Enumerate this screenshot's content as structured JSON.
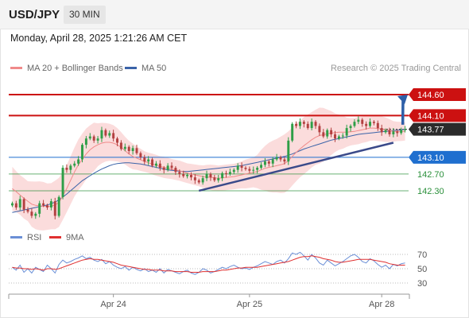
{
  "header": {
    "symbol": "USD/JPY",
    "interval": "30 MIN",
    "datetime": "Monday, April 28, 2025 1:21:26 AM CET"
  },
  "legend": {
    "ma20_label": "MA 20 + Bollinger Bands",
    "ma50_label": "MA 50",
    "credit": "Research © 2025 Trading Central"
  },
  "rsi_legend": {
    "rsi_label": "RSI",
    "ma_label": "9MA"
  },
  "colors": {
    "up": "#2e9e47",
    "down": "#b34040",
    "ma20": "#f08a8a",
    "ma50": "#3b63a8",
    "band": "#fbdcdc",
    "resistance": "#cc1111",
    "support": "#1f6fcf",
    "target": "#2a8f3a",
    "trend": "#3a4a8a",
    "arrow": "#2d5fa8",
    "rsi": "#6b8fd6",
    "rsi_ma": "#e03030",
    "current": "#2b2b2b"
  },
  "chart_data": {
    "type": "candlestick",
    "y_range": [
      141.5,
      145.0
    ],
    "x_labels": [
      "Apr 24",
      "Apr 25",
      "Apr 28"
    ],
    "current_price": 143.77,
    "levels": [
      {
        "value": 144.6,
        "label": "144.60",
        "kind": "resistance"
      },
      {
        "value": 144.1,
        "label": "144.10",
        "kind": "resistance"
      },
      {
        "value": 143.77,
        "label": "143.77",
        "kind": "current"
      },
      {
        "value": 143.1,
        "label": "143.10",
        "kind": "pivot"
      },
      {
        "value": 142.7,
        "label": "142.70",
        "kind": "support"
      },
      {
        "value": 142.3,
        "label": "142.30",
        "kind": "support"
      }
    ],
    "closes": [
      142.0,
      141.9,
      142.1,
      141.85,
      141.8,
      141.7,
      141.75,
      142.0,
      141.95,
      141.9,
      142.05,
      141.7,
      142.15,
      142.85,
      142.8,
      142.9,
      142.95,
      143.05,
      143.4,
      143.55,
      143.6,
      143.5,
      143.55,
      143.75,
      143.62,
      143.68,
      143.55,
      143.45,
      143.3,
      143.35,
      143.25,
      143.32,
      143.2,
      143.1,
      143.0,
      143.05,
      142.9,
      142.95,
      142.85,
      142.8,
      142.9,
      142.85,
      142.75,
      142.7,
      142.65,
      142.68,
      142.62,
      142.55,
      142.5,
      142.6,
      142.7,
      142.62,
      142.55,
      142.6,
      142.72,
      142.7,
      142.75,
      142.8,
      142.9,
      142.85,
      142.82,
      142.78,
      142.8,
      142.85,
      142.92,
      143.0,
      142.95,
      143.05,
      143.1,
      143.05,
      143.0,
      143.5,
      143.9,
      143.85,
      143.95,
      143.9,
      143.8,
      143.95,
      143.85,
      143.7,
      143.6,
      143.75,
      143.65,
      143.55,
      143.6,
      143.62,
      143.8,
      143.85,
      143.95,
      144.0,
      143.9,
      143.85,
      143.95,
      143.92,
      143.8,
      143.7,
      143.75,
      143.65,
      143.72,
      143.68,
      143.75,
      143.77
    ],
    "ma20": [
      142.35,
      142.28,
      142.2,
      142.12,
      142.05,
      141.98,
      141.95,
      141.94,
      141.93,
      141.92,
      141.93,
      141.96,
      142.02,
      142.18,
      142.35,
      142.55,
      142.75,
      142.92,
      143.05,
      143.18,
      143.28,
      143.35,
      143.4,
      143.44,
      143.46,
      143.46,
      143.44,
      143.4,
      143.34,
      143.26,
      143.18,
      143.12,
      143.08,
      143.04,
      143.0,
      142.97,
      142.94,
      142.91,
      142.88,
      142.86,
      142.84,
      142.82,
      142.8,
      142.78,
      142.75,
      142.72,
      142.7,
      142.68,
      142.66,
      142.64,
      142.63,
      142.62,
      142.61,
      142.6,
      142.61,
      142.62,
      142.63,
      142.64,
      142.66,
      142.68,
      142.7,
      142.72,
      142.74,
      142.76,
      142.8,
      142.84,
      142.86,
      142.88,
      142.9,
      142.92,
      142.95,
      143.02,
      143.12,
      143.22,
      143.3,
      143.38,
      143.45,
      143.52,
      143.58,
      143.62,
      143.64,
      143.66,
      143.68,
      143.69,
      143.7,
      143.7,
      143.7,
      143.71,
      143.72,
      143.74,
      143.76,
      143.78,
      143.8,
      143.8,
      143.79,
      143.78,
      143.76,
      143.74,
      143.72,
      143.72,
      143.72,
      143.72
    ],
    "ma50": [
      141.78,
      141.8,
      141.82,
      141.84,
      141.86,
      141.88,
      141.9,
      141.92,
      141.94,
      141.96,
      141.99,
      142.03,
      142.08,
      142.15,
      142.22,
      142.3,
      142.38,
      142.46,
      142.54,
      142.6,
      142.66,
      142.72,
      142.77,
      142.82,
      142.86,
      142.9,
      142.93,
      142.95,
      142.96,
      142.97,
      142.97,
      142.96,
      142.95,
      142.94,
      142.92,
      142.9,
      142.88,
      142.86,
      142.84,
      142.82,
      142.8,
      142.79,
      142.78,
      142.77,
      142.76,
      142.76,
      142.77,
      142.78,
      142.79,
      142.8,
      142.81,
      142.82,
      142.83,
      142.84,
      142.85,
      142.86,
      142.87,
      142.88,
      142.89,
      142.9,
      142.92,
      142.94,
      142.96,
      142.98,
      143.0,
      143.02,
      143.04,
      143.06,
      143.08,
      143.1,
      143.12,
      143.15,
      143.18,
      143.22,
      143.26,
      143.3,
      143.33,
      143.36,
      143.39,
      143.42,
      143.45,
      143.48,
      143.51,
      143.53,
      143.55,
      143.57,
      143.59,
      143.61,
      143.63,
      143.65,
      143.66,
      143.67,
      143.68,
      143.69,
      143.7,
      143.71,
      143.72,
      143.73,
      143.74,
      143.75,
      143.76,
      143.77
    ],
    "rsi": {
      "y_ticks": [
        70,
        50,
        30
      ],
      "range": [
        20,
        80
      ],
      "rsi": [
        52,
        48,
        55,
        45,
        50,
        44,
        52,
        49,
        46,
        55,
        50,
        44,
        56,
        62,
        58,
        60,
        63,
        65,
        68,
        64,
        66,
        62,
        60,
        63,
        57,
        60,
        55,
        52,
        50,
        53,
        48,
        52,
        49,
        47,
        50,
        46,
        48,
        45,
        50,
        44,
        49,
        47,
        45,
        43,
        46,
        48,
        44,
        42,
        45,
        50,
        48,
        44,
        46,
        49,
        52,
        50,
        53,
        55,
        52,
        50,
        51,
        49,
        52,
        54,
        57,
        60,
        58,
        56,
        60,
        62,
        58,
        64,
        72,
        70,
        73,
        68,
        62,
        70,
        65,
        58,
        55,
        62,
        58,
        54,
        57,
        60,
        64,
        68,
        70,
        66,
        60,
        58,
        64,
        61,
        56,
        52,
        55,
        50,
        56,
        54,
        57,
        58
      ],
      "ma": [
        52,
        51,
        51,
        50,
        50,
        49,
        50,
        49,
        48,
        50,
        50,
        49,
        50,
        52,
        54,
        56,
        58,
        60,
        62,
        63,
        64,
        63,
        63,
        62,
        61,
        60,
        59,
        57,
        55,
        54,
        53,
        52,
        51,
        50,
        49,
        49,
        48,
        48,
        48,
        47,
        47,
        47,
        46,
        46,
        46,
        46,
        45,
        45,
        45,
        46,
        46,
        46,
        46,
        47,
        48,
        48,
        49,
        50,
        51,
        51,
        52,
        52,
        52,
        52,
        53,
        54,
        55,
        56,
        57,
        58,
        59,
        60,
        62,
        64,
        66,
        67,
        67,
        68,
        67,
        66,
        64,
        63,
        62,
        60,
        59,
        59,
        60,
        61,
        62,
        63,
        63,
        63,
        63,
        62,
        61,
        60,
        59,
        57,
        56,
        55,
        55,
        55
      ]
    }
  }
}
